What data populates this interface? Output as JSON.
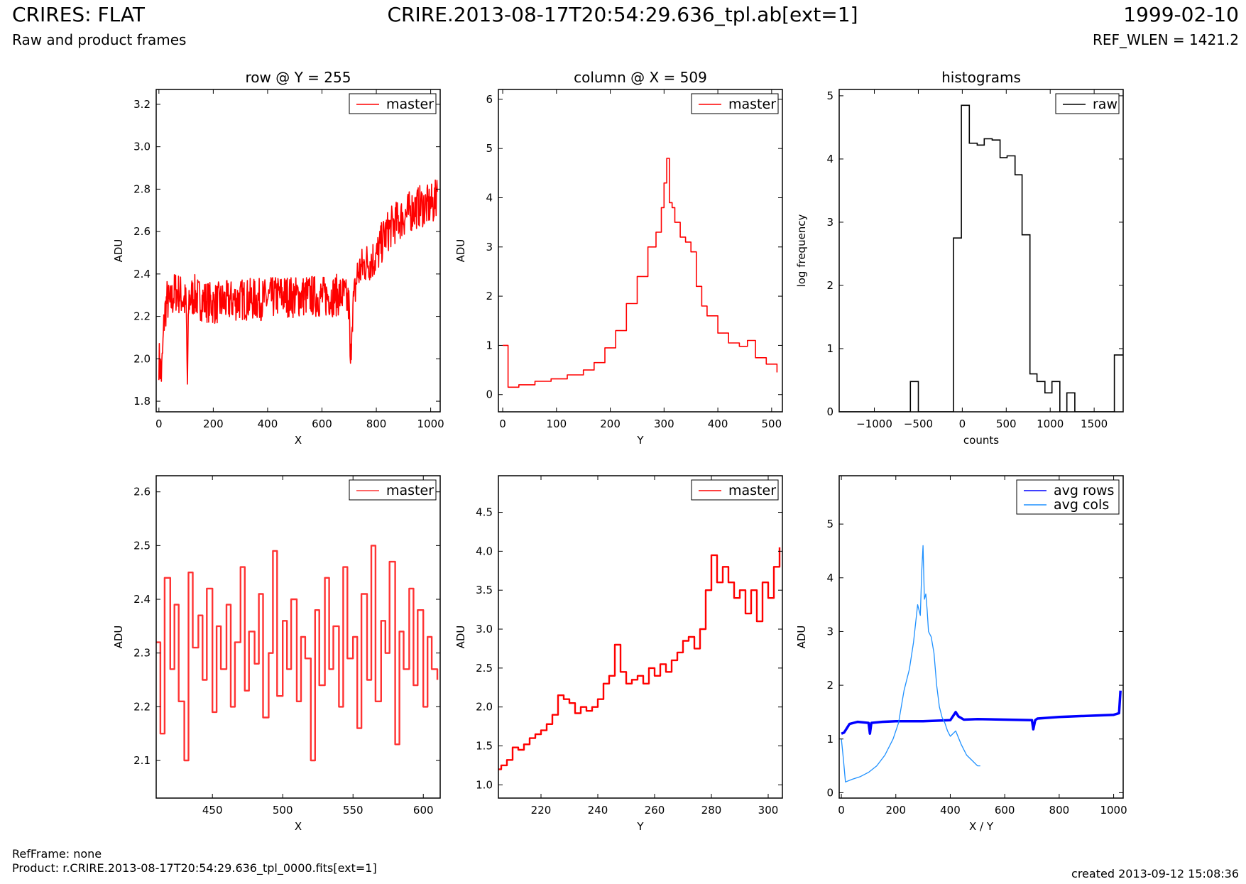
{
  "header": {
    "left_title": "CRIRES: FLAT",
    "left_subtitle": "Raw and product frames",
    "center_title": "CRIRE.2013-08-17T20:54:29.636_tpl.ab[ext=1]",
    "right_title": "1999-02-10",
    "right_subtitle": "REF_WLEN = 1421.2"
  },
  "footer": {
    "refframe": "RefFrame: none",
    "product": "Product: r.CRIRE.2013-08-17T20:54:29.636_tpl_0000.fits[ext=1]",
    "created": "created 2013-09-12 15:08:36"
  },
  "colors": {
    "master": "#ff0000",
    "master_light": "#ff3333",
    "raw": "#000000",
    "avg_rows": "#0000ff",
    "avg_cols": "#1e90ff"
  },
  "chart_data": [
    {
      "id": "row",
      "type": "line",
      "title": "row @ Y = 255",
      "xlabel": "X",
      "ylabel": "ADU",
      "xlim": [
        -10,
        1035
      ],
      "ylim": [
        1.75,
        3.27
      ],
      "xticks": [
        0,
        200,
        400,
        600,
        800,
        1000
      ],
      "yticks": [
        1.8,
        2.0,
        2.2,
        2.4,
        2.6,
        2.8,
        3.0,
        3.2
      ],
      "legend": "top-right",
      "series": [
        {
          "name": "master",
          "color": "#ff0000",
          "x": [
            0,
            10,
            20,
            30,
            40,
            60,
            80,
            100,
            105,
            110,
            130,
            150,
            180,
            200,
            250,
            300,
            350,
            400,
            450,
            500,
            550,
            600,
            650,
            680,
            700,
            705,
            710,
            730,
            760,
            800,
            830,
            860,
            900,
            930,
            960,
            990,
            1010,
            1020,
            1025
          ],
          "y": [
            2.0,
            1.92,
            2.2,
            2.28,
            2.25,
            2.32,
            2.3,
            2.26,
            1.88,
            2.28,
            2.3,
            2.28,
            2.27,
            2.26,
            2.27,
            2.28,
            2.28,
            2.28,
            2.3,
            2.29,
            2.3,
            2.29,
            2.3,
            2.3,
            2.25,
            1.92,
            2.2,
            2.4,
            2.45,
            2.48,
            2.58,
            2.63,
            2.67,
            2.7,
            2.72,
            2.72,
            2.73,
            2.75,
            2.9
          ],
          "noise": 0.1
        }
      ]
    },
    {
      "id": "column",
      "type": "line",
      "title": "column @ X = 509",
      "xlabel": "Y",
      "ylabel": "ADU",
      "xlim": [
        -8,
        520
      ],
      "ylim": [
        -0.35,
        6.2
      ],
      "xticks": [
        0,
        100,
        200,
        300,
        400,
        500
      ],
      "yticks": [
        0,
        1,
        2,
        3,
        4,
        5,
        6
      ],
      "legend": "top-right",
      "series": [
        {
          "name": "master",
          "color": "#ff0000",
          "x": [
            0,
            8,
            10,
            30,
            60,
            90,
            120,
            150,
            170,
            190,
            210,
            230,
            250,
            270,
            285,
            295,
            300,
            305,
            310,
            315,
            320,
            330,
            340,
            350,
            360,
            370,
            380,
            400,
            420,
            440,
            455,
            470,
            490,
            510
          ],
          "y": [
            1.0,
            1.0,
            0.15,
            0.2,
            0.27,
            0.32,
            0.4,
            0.5,
            0.65,
            0.95,
            1.3,
            1.85,
            2.4,
            3.0,
            3.3,
            3.8,
            4.3,
            4.8,
            3.9,
            3.8,
            3.5,
            3.2,
            3.1,
            2.9,
            2.2,
            1.8,
            1.6,
            1.25,
            1.05,
            0.98,
            1.1,
            0.75,
            0.62,
            0.45
          ]
        }
      ]
    },
    {
      "id": "histogram",
      "type": "bar",
      "title": "histograms",
      "xlabel": "counts",
      "ylabel": "log frequency",
      "xlim": [
        -1400,
        1830
      ],
      "ylim": [
        0,
        5.1
      ],
      "xticks": [
        -1000,
        -500,
        0,
        500,
        1000,
        1500
      ],
      "yticks": [
        0,
        1,
        2,
        3,
        4,
        5
      ],
      "legend": "top-right",
      "series": [
        {
          "name": "raw",
          "color": "#000000",
          "bin_edges": [
            -1400,
            -590,
            -500,
            -100,
            -10,
            80,
            170,
            250,
            340,
            430,
            510,
            600,
            680,
            770,
            850,
            940,
            1020,
            1110,
            1190,
            1280,
            1360,
            1450,
            1730,
            1830
          ],
          "values": [
            0,
            0.48,
            0,
            2.75,
            4.85,
            4.25,
            4.22,
            4.32,
            4.3,
            4.02,
            4.05,
            3.75,
            2.8,
            0.6,
            0.48,
            0.3,
            0.48,
            0,
            0.3,
            0,
            0,
            0,
            0.9
          ]
        }
      ]
    },
    {
      "id": "row-zoom",
      "type": "line",
      "title": "",
      "xlabel": "X",
      "ylabel": "ADU",
      "xlim": [
        410,
        612
      ],
      "ylim": [
        2.03,
        2.63
      ],
      "xticks": [
        450,
        500,
        550,
        600
      ],
      "yticks": [
        2.1,
        2.2,
        2.3,
        2.4,
        2.5,
        2.6
      ],
      "legend": "top-right",
      "series": [
        {
          "name": "master",
          "color": "#ff3333",
          "x": [
            410,
            413,
            416,
            420,
            423,
            426,
            430,
            433,
            436,
            440,
            443,
            446,
            450,
            453,
            456,
            460,
            463,
            466,
            470,
            473,
            476,
            480,
            483,
            486,
            490,
            493,
            496,
            500,
            503,
            506,
            510,
            513,
            516,
            520,
            523,
            526,
            530,
            533,
            536,
            540,
            543,
            546,
            550,
            553,
            556,
            560,
            563,
            566,
            570,
            573,
            576,
            580,
            583,
            586,
            590,
            593,
            596,
            600,
            603,
            606,
            610
          ],
          "y": [
            2.32,
            2.15,
            2.44,
            2.27,
            2.39,
            2.21,
            2.1,
            2.45,
            2.31,
            2.37,
            2.25,
            2.42,
            2.19,
            2.35,
            2.27,
            2.39,
            2.2,
            2.32,
            2.46,
            2.23,
            2.34,
            2.28,
            2.41,
            2.18,
            2.3,
            2.49,
            2.22,
            2.36,
            2.27,
            2.4,
            2.21,
            2.33,
            2.29,
            2.1,
            2.38,
            2.24,
            2.44,
            2.27,
            2.35,
            2.2,
            2.46,
            2.29,
            2.33,
            2.16,
            2.41,
            2.25,
            2.5,
            2.21,
            2.36,
            2.3,
            2.47,
            2.13,
            2.34,
            2.27,
            2.42,
            2.24,
            2.38,
            2.2,
            2.33,
            2.27,
            2.25
          ]
        }
      ]
    },
    {
      "id": "column-zoom",
      "type": "line",
      "title": "",
      "xlabel": "Y",
      "ylabel": "ADU",
      "xlim": [
        205,
        305
      ],
      "ylim": [
        0.83,
        4.97
      ],
      "xticks": [
        220,
        240,
        260,
        280,
        300
      ],
      "yticks": [
        1.0,
        1.5,
        2.0,
        2.5,
        3.0,
        3.5,
        4.0,
        4.5
      ],
      "legend": "top-right",
      "series": [
        {
          "name": "master",
          "color": "#ff0000",
          "x": [
            205,
            206,
            208,
            210,
            212,
            214,
            216,
            218,
            220,
            222,
            224,
            226,
            228,
            230,
            232,
            234,
            236,
            238,
            240,
            242,
            244,
            246,
            248,
            250,
            252,
            254,
            256,
            258,
            260,
            262,
            264,
            266,
            268,
            270,
            272,
            274,
            276,
            278,
            280,
            282,
            284,
            286,
            288,
            290,
            292,
            294,
            296,
            298,
            300,
            302,
            304
          ],
          "y": [
            1.2,
            1.25,
            1.32,
            1.48,
            1.45,
            1.52,
            1.6,
            1.65,
            1.7,
            1.78,
            1.9,
            2.15,
            2.1,
            2.05,
            1.92,
            2.0,
            1.95,
            2.0,
            2.1,
            2.3,
            2.4,
            2.8,
            2.45,
            2.3,
            2.35,
            2.4,
            2.3,
            2.5,
            2.4,
            2.55,
            2.45,
            2.6,
            2.7,
            2.85,
            2.9,
            2.75,
            3.0,
            3.5,
            3.95,
            3.6,
            3.8,
            3.6,
            3.4,
            3.5,
            3.2,
            3.5,
            3.1,
            3.6,
            3.4,
            3.8,
            4.05
          ]
        }
      ]
    },
    {
      "id": "averages",
      "type": "line",
      "title": "",
      "xlabel": "X / Y",
      "ylabel": "ADU",
      "xlim": [
        -8,
        1035
      ],
      "ylim": [
        -0.1,
        5.9
      ],
      "xticks": [
        0,
        200,
        400,
        600,
        800,
        1000
      ],
      "yticks": [
        0,
        1,
        2,
        3,
        4,
        5
      ],
      "legend": "top-right",
      "series": [
        {
          "name": "avg rows",
          "color": "#0000ff",
          "x": [
            0,
            10,
            30,
            60,
            100,
            105,
            110,
            150,
            200,
            300,
            400,
            420,
            430,
            450,
            500,
            600,
            700,
            705,
            712,
            720,
            800,
            900,
            1000,
            1020,
            1025
          ],
          "y": [
            1.1,
            1.12,
            1.28,
            1.32,
            1.3,
            1.1,
            1.3,
            1.32,
            1.33,
            1.33,
            1.35,
            1.5,
            1.42,
            1.36,
            1.37,
            1.36,
            1.35,
            1.18,
            1.35,
            1.38,
            1.41,
            1.43,
            1.45,
            1.48,
            1.9
          ],
          "width": 3.5
        },
        {
          "name": "avg cols",
          "color": "#1e90ff",
          "x": [
            0,
            8,
            15,
            40,
            70,
            100,
            130,
            160,
            190,
            210,
            230,
            250,
            265,
            280,
            290,
            295,
            300,
            305,
            310,
            315,
            320,
            330,
            340,
            350,
            360,
            370,
            380,
            390,
            400,
            420,
            440,
            460,
            480,
            500,
            510
          ],
          "y": [
            1.0,
            0.6,
            0.2,
            0.25,
            0.3,
            0.38,
            0.5,
            0.7,
            1.0,
            1.3,
            1.9,
            2.3,
            2.8,
            3.5,
            3.3,
            4.1,
            4.6,
            3.6,
            3.7,
            3.4,
            3.0,
            2.9,
            2.6,
            2.0,
            1.6,
            1.4,
            1.3,
            1.15,
            1.05,
            1.15,
            0.9,
            0.7,
            0.6,
            0.5,
            0.5
          ],
          "width": 1.3
        }
      ]
    }
  ]
}
